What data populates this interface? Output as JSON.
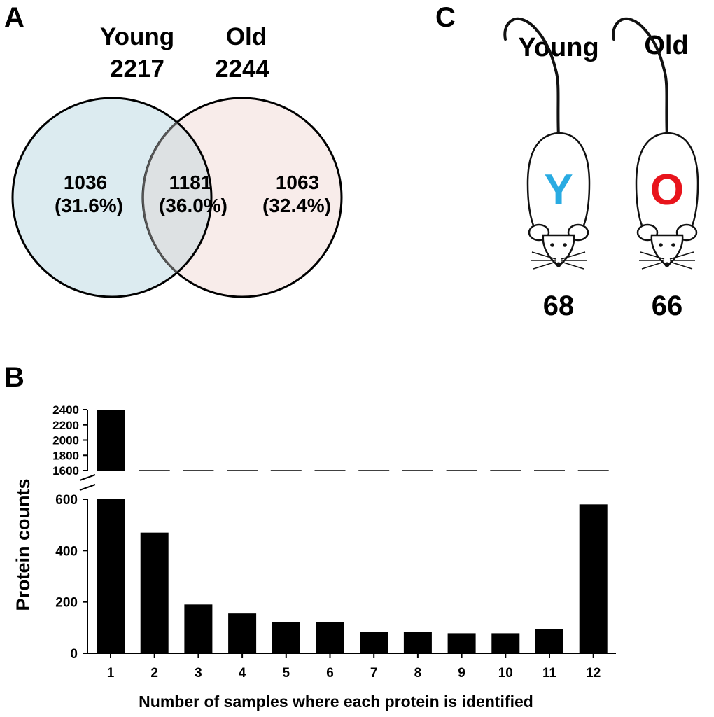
{
  "panels": {
    "a_letter": "A",
    "b_letter": "B",
    "c_letter": "C"
  },
  "venn": {
    "young": {
      "label": "Young",
      "total": "2217",
      "unique_count": "1036",
      "unique_pct": "(31.6%)"
    },
    "old": {
      "label": "Old",
      "total": "2244",
      "unique_count": "1063",
      "unique_pct": "(32.4%)"
    },
    "overlap": {
      "count": "1181",
      "pct": "(36.0%)"
    },
    "colors": {
      "young_fill": "#dcebf0",
      "old_fill": "#f8ecea",
      "overlap_fill": "#dde1e3"
    }
  },
  "mice": {
    "young": {
      "label": "Young",
      "letter": "Y",
      "count": "68",
      "letter_color": "#29abe2"
    },
    "old": {
      "label": "Old",
      "letter": "O",
      "count": "66",
      "letter_color": "#e8141c"
    }
  },
  "chart_data": {
    "type": "bar",
    "title": "",
    "xlabel": "Number of samples where each protein is identified",
    "ylabel": "Protein counts",
    "categories": [
      "1",
      "2",
      "3",
      "4",
      "5",
      "6",
      "7",
      "8",
      "9",
      "10",
      "11",
      "12"
    ],
    "values": [
      2400,
      470,
      190,
      155,
      122,
      120,
      82,
      82,
      78,
      78,
      95,
      580
    ],
    "axis_break": [
      600,
      1600
    ],
    "lower_ylim": [
      0,
      600
    ],
    "upper_ylim": [
      1600,
      2400
    ],
    "lower_ticks": [
      "0",
      "200",
      "400",
      "600"
    ],
    "upper_ticks": [
      "1600",
      "1800",
      "2000",
      "2200",
      "2400"
    ],
    "bar_color": "#000000"
  }
}
